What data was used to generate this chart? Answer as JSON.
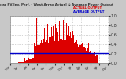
{
  "title": "Solar PV/Inv. Perf. - West Array Actual & Average Power Output",
  "bg_color": "#c8c8c8",
  "plot_bg": "#ffffff",
  "grid_color": "#aaaaaa",
  "bar_color": "#dd0000",
  "avg_line_color": "#0000cc",
  "avg_line_value": 0.22,
  "ylim": [
    0,
    1.0
  ],
  "n_bars": 144,
  "legend_actual": "ACTUAL OUTPUT",
  "legend_avg": "AVERAGE OUTPUT",
  "legend_actual_color": "#dd0000",
  "legend_avg_color": "#0000cc",
  "title_color": "#333333",
  "tick_color": "#333333",
  "ytick_labels": [
    "1.0",
    "0.8",
    "0.6",
    "0.4",
    "0.2",
    "0.0"
  ],
  "ytick_vals": [
    1.0,
    0.8,
    0.6,
    0.4,
    0.2,
    0.0
  ]
}
